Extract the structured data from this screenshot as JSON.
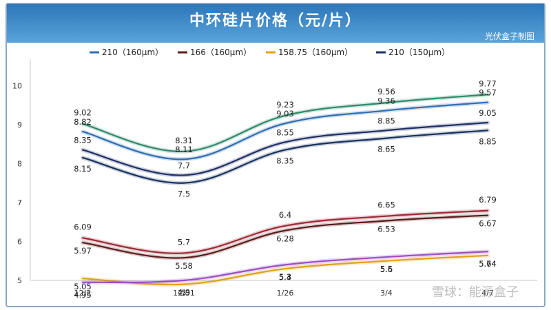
{
  "header": {
    "title": "中环硅片价格（元/片）",
    "brand": "光伏盒子制图"
  },
  "watermark": "雪球：能源盒子",
  "colors": {
    "header": "#3f8fcf",
    "s210_160": "#2e6fb2",
    "s166": "#5a1c1c",
    "s158": "#e0a21a",
    "s210_150": "#1f2f66",
    "extra_green": "#2f8a6a",
    "extra_dark": "#17325e",
    "extra_red": "#9c2a36",
    "extra_purple": "#9b4fc0"
  },
  "chart_data": {
    "type": "line",
    "categories": [
      "12/2",
      "12/31",
      "1/26",
      "3/4",
      "4/7"
    ],
    "ylim": [
      5,
      10.5
    ],
    "yticks": [
      5,
      6,
      7,
      8,
      9,
      10
    ],
    "legend_position": "top",
    "series": [
      {
        "name": "210（160μm）",
        "legend": true,
        "color_key": "s210_160",
        "values": [
          8.82,
          8.11,
          9.03,
          9.36,
          9.57
        ],
        "labels": [
          "8.82",
          "8.11",
          "9.03",
          "9.36",
          "9.57"
        ]
      },
      {
        "name": "166（160μm）",
        "legend": true,
        "color_key": "s166",
        "values": [
          5.97,
          5.58,
          6.28,
          6.53,
          6.67
        ],
        "labels": [
          "5.97",
          "5.58",
          "6.28",
          "6.53",
          "6.67"
        ]
      },
      {
        "name": "158.75（160μm）",
        "legend": true,
        "color_key": "s158",
        "values": [
          5.05,
          4.9,
          5.3,
          5.5,
          5.64
        ],
        "labels": [
          "5.05",
          "4.9",
          "5.3",
          "5.5",
          "5.64"
        ]
      },
      {
        "name": "210（150μm）",
        "legend": true,
        "color_key": "s210_150",
        "values": [
          8.35,
          7.7,
          8.55,
          8.85,
          9.05
        ],
        "labels": [
          "8.35",
          "7.7",
          "8.55",
          "8.85",
          "9.05"
        ]
      },
      {
        "name": "",
        "legend": false,
        "color_key": "extra_green",
        "values": [
          9.02,
          8.31,
          9.23,
          9.56,
          9.77
        ],
        "labels": [
          "9.02",
          "8.31",
          "9.23",
          "9.56",
          "9.77"
        ]
      },
      {
        "name": "",
        "legend": false,
        "color_key": "extra_dark",
        "values": [
          8.15,
          7.5,
          8.35,
          8.65,
          8.85
        ],
        "labels": [
          "8.15",
          "7.5",
          "8.35",
          "8.65",
          "8.85"
        ]
      },
      {
        "name": "",
        "legend": false,
        "color_key": "extra_red",
        "values": [
          6.09,
          5.7,
          6.4,
          6.65,
          6.79
        ],
        "labels": [
          "6.09",
          "5.7",
          "6.4",
          "6.65",
          "6.79"
        ]
      },
      {
        "name": "",
        "legend": false,
        "color_key": "extra_purple",
        "values": [
          4.95,
          5.0,
          5.4,
          5.6,
          5.74
        ],
        "labels": [
          "4.95",
          "5",
          "5.4",
          "5.6",
          "5.74"
        ]
      }
    ]
  }
}
